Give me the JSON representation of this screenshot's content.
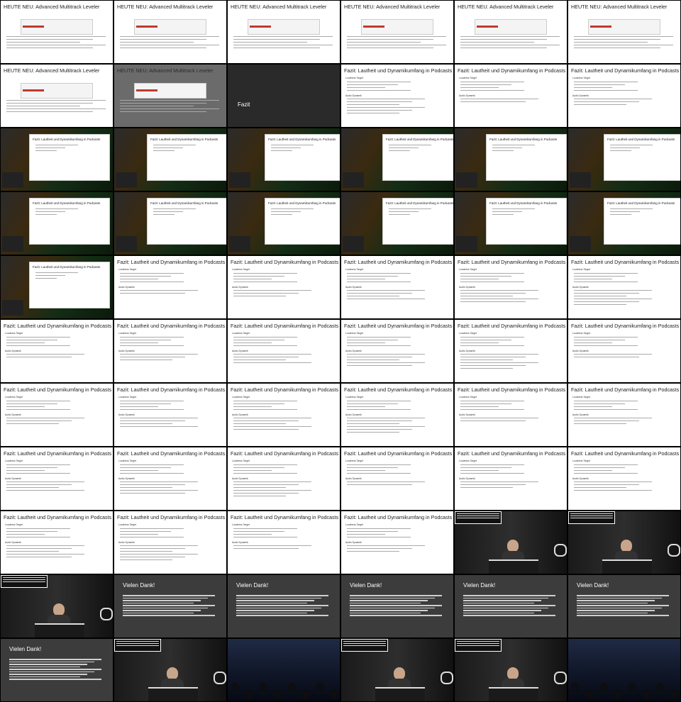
{
  "slides": {
    "leveler_title": "HEUTE NEU: Advanced Multitrack Leveler",
    "fazit_heading": "Fazit",
    "fazit_title": "Fazit: Lautheit und Dynamikumfang in Podcasts",
    "danke_title": "Vielen Dank!",
    "lautheit_target": "Loudness Target",
    "audio_dynamik": "Audio Dynamik"
  },
  "layout": {
    "cell_types": [
      "leveler",
      "leveler",
      "leveler",
      "leveler",
      "leveler",
      "leveler",
      "leveler",
      "leveler-dim",
      "fazit",
      "fazit-white",
      "fazit-white",
      "fazit-white",
      "stage",
      "stage",
      "stage",
      "stage",
      "stage",
      "stage",
      "stage",
      "stage",
      "stage",
      "stage",
      "stage",
      "stage",
      "stage",
      "fazit-white",
      "fazit-white",
      "fazit-white",
      "fazit-white",
      "fazit-white",
      "fazit-white",
      "fazit-white",
      "fazit-white",
      "fazit-white",
      "fazit-white",
      "fazit-white",
      "fazit-white",
      "fazit-white",
      "fazit-white",
      "fazit-white",
      "fazit-white",
      "fazit-white",
      "fazit-white",
      "fazit-white",
      "fazit-white",
      "fazit-white",
      "fazit-white",
      "fazit-white",
      "fazit-white",
      "fazit-white",
      "fazit-white",
      "fazit-white",
      "speaker",
      "speaker",
      "speaker",
      "danke",
      "danke",
      "danke",
      "danke",
      "danke",
      "danke",
      "speaker",
      "audience",
      "speaker",
      "speaker",
      "audience"
    ]
  },
  "colors": {
    "accent_red": "#c0392b",
    "slide_white": "#ffffff",
    "slide_dark": "#3c3c3c"
  }
}
